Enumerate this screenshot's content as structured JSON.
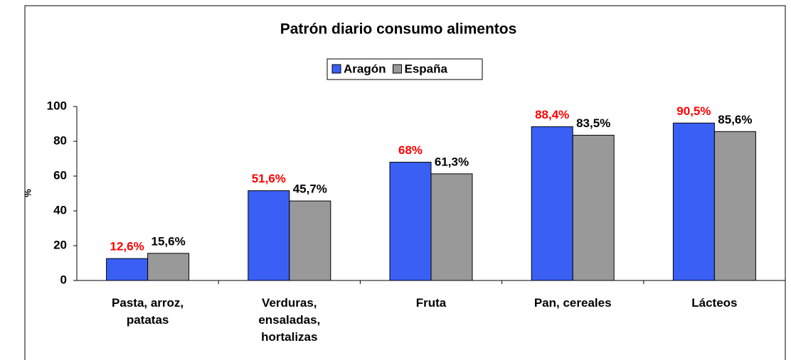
{
  "chart_data": {
    "type": "bar",
    "title": "Patrón diario consumo alimentos",
    "y_label": "%",
    "categories": [
      "Pasta, arroz, patatas",
      "Verduras, ensaladas, hortalizas",
      "Fruta",
      "Pan, cereales",
      "Lácteos"
    ],
    "series": [
      {
        "name": "Aragón",
        "color": "#3a5ff5",
        "label_color": "#ff0000",
        "values": [
          12.6,
          51.6,
          68,
          88.4,
          90.5
        ],
        "value_labels": [
          "12,6%",
          "51,6%",
          "68%",
          "88,4%",
          "90,5%"
        ]
      },
      {
        "name": "España",
        "color": "#999999",
        "label_color": "#000000",
        "values": [
          15.6,
          45.7,
          61.3,
          83.5,
          85.6
        ],
        "value_labels": [
          "15,6%",
          "45,7%",
          "61,3%",
          "83,5%",
          "85,6%"
        ]
      }
    ],
    "ylim": [
      0,
      100
    ],
    "yticks": [
      0,
      20,
      40,
      60,
      80,
      100
    ],
    "grid": false,
    "legend": "top"
  }
}
